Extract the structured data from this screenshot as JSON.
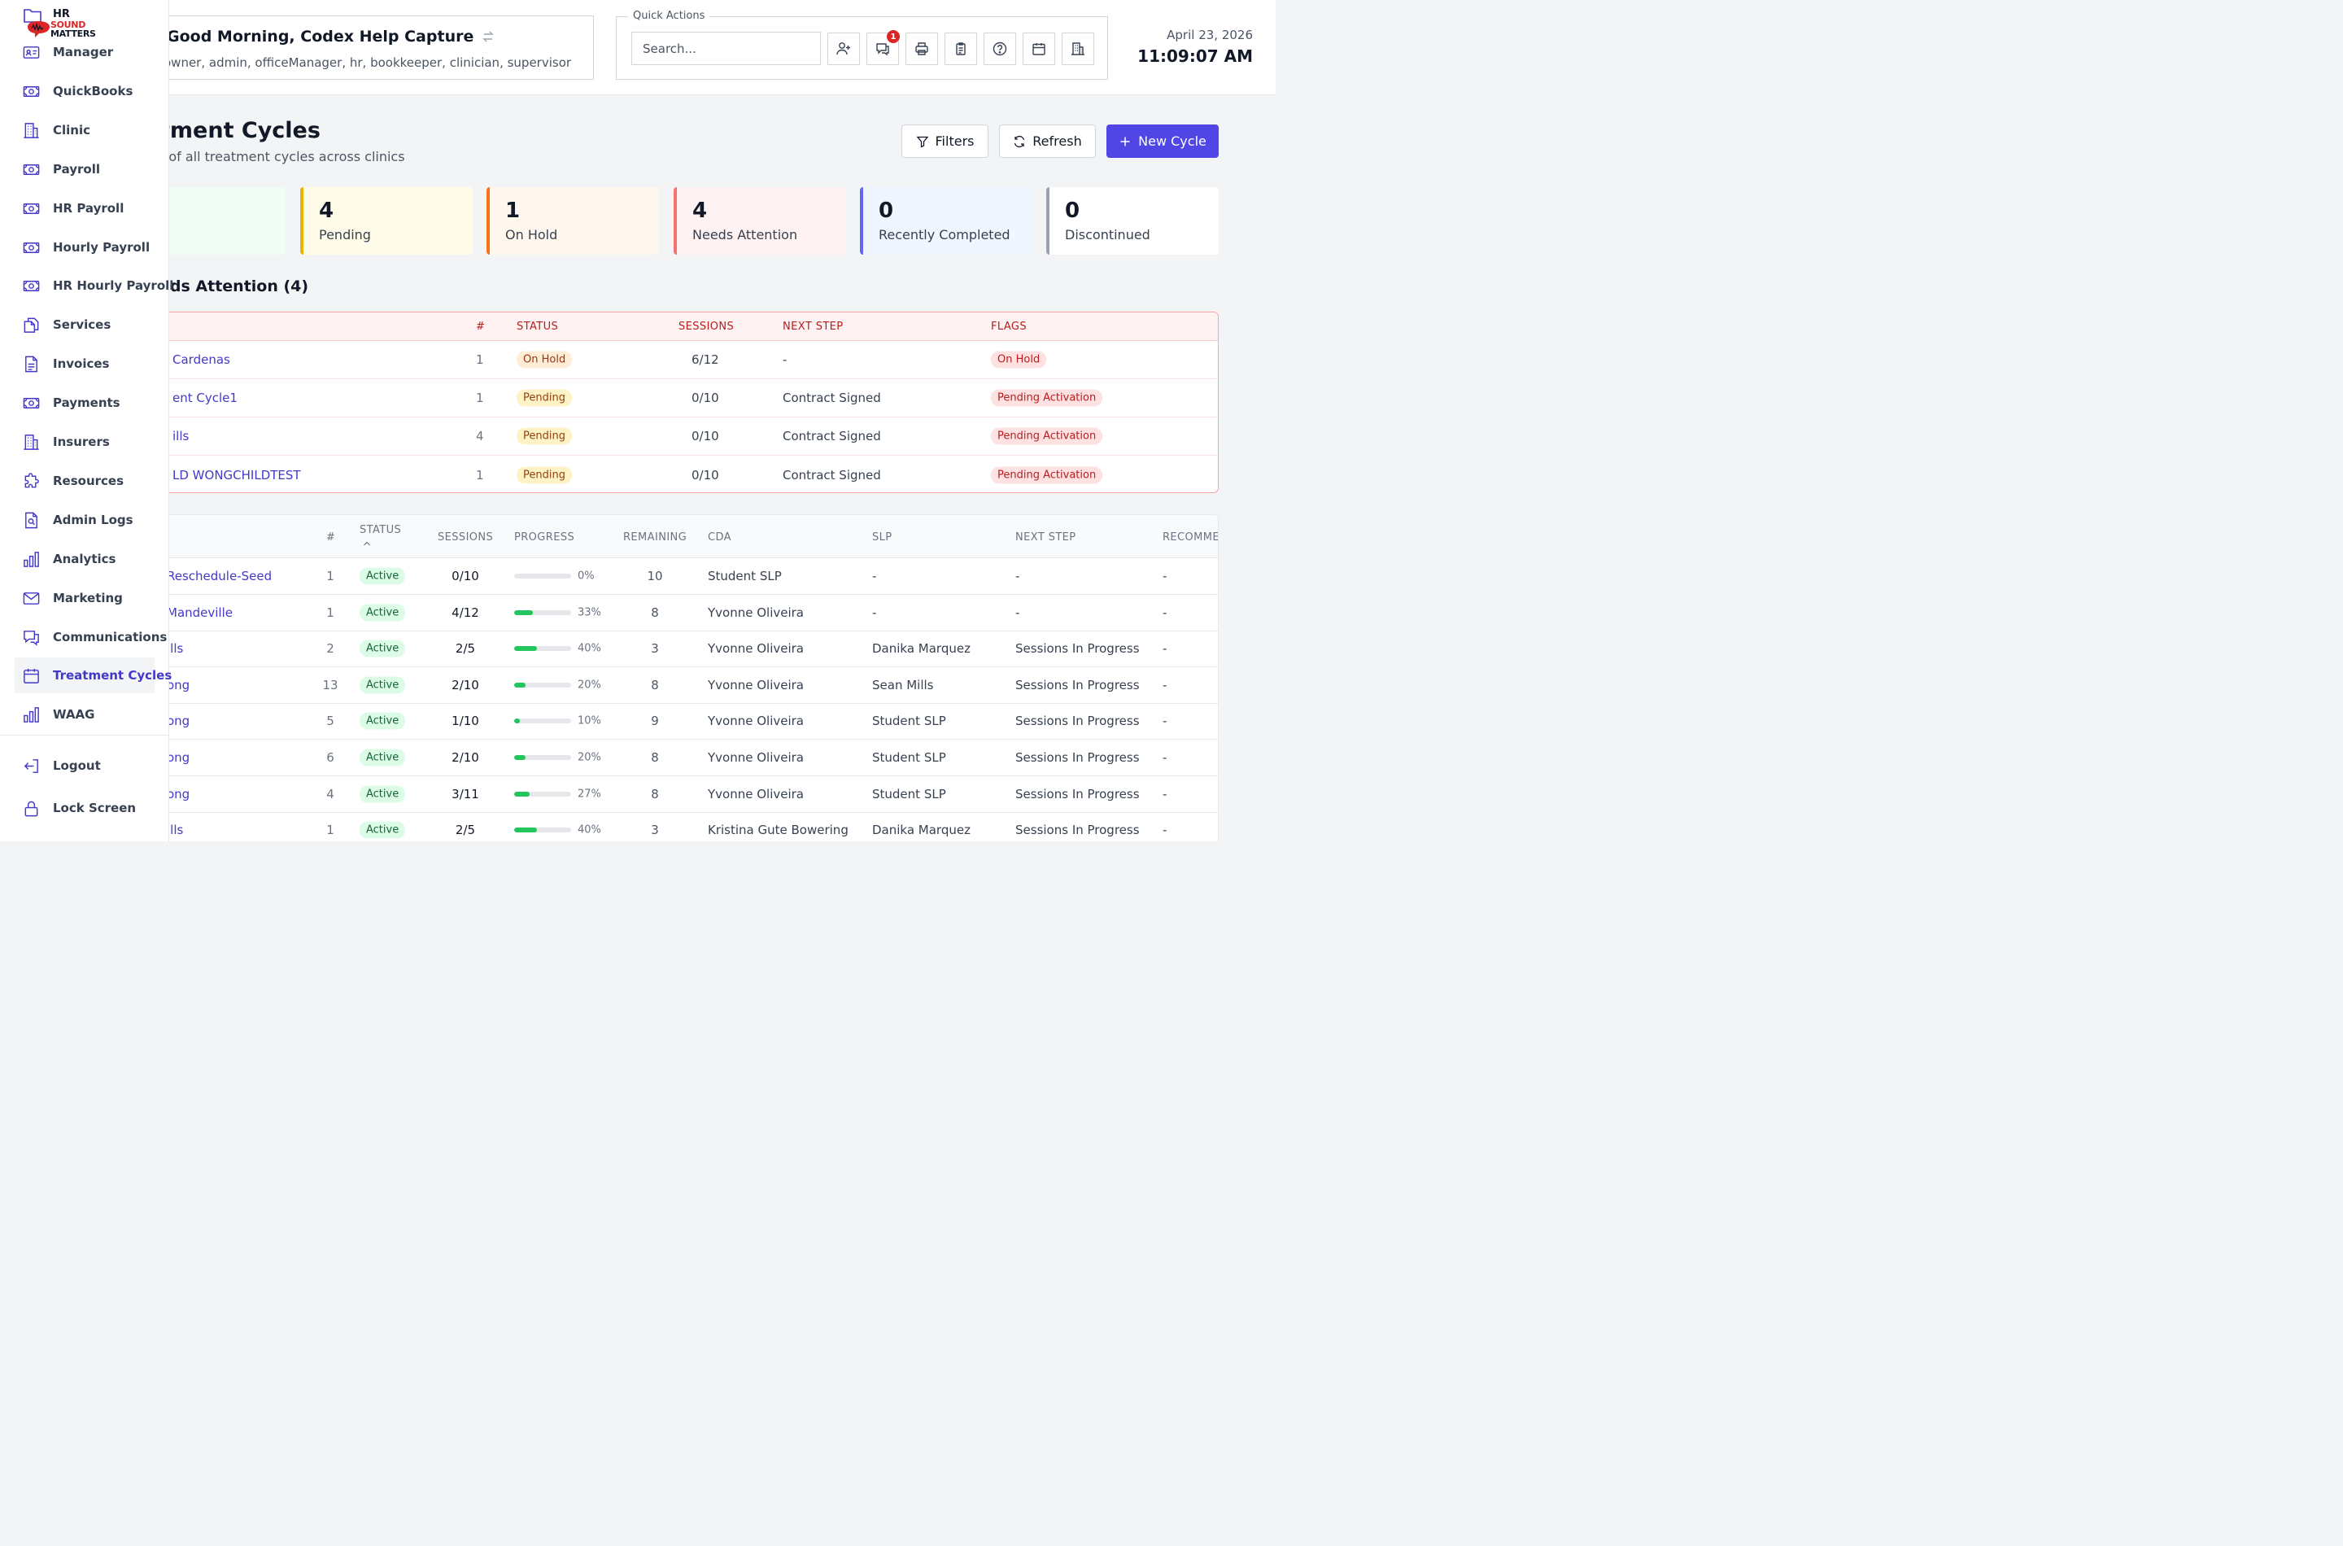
{
  "header": {
    "greeting": "Good Morning, Codex Help Capture",
    "roles": "owner, admin, officeManager, hr, bookkeeper, clinician, supervisor",
    "quick_actions_label": "Quick Actions",
    "search_placeholder": "Search...",
    "messages_badge": "1",
    "date": "April 23, 2026",
    "time": "11:09:07 AM"
  },
  "page": {
    "title": "tment Cycles",
    "subtitle": "t of all treatment cycles across clinics",
    "filters_label": "Filters",
    "refresh_label": "Refresh",
    "new_cycle_label": "New Cycle"
  },
  "stats": [
    {
      "value": "4",
      "label": "Pending",
      "bg": "#fefce8",
      "border": "#eab308"
    },
    {
      "value": "1",
      "label": "On Hold",
      "bg": "#fff7ed",
      "border": "#f97316"
    },
    {
      "value": "4",
      "label": "Needs Attention",
      "bg": "#fef2f2",
      "border": "#f87171"
    },
    {
      "value": "0",
      "label": "Recently Completed",
      "bg": "#eff6ff",
      "border": "#6366f1"
    },
    {
      "value": "0",
      "label": "Discontinued",
      "bg": "#ffffff",
      "border": "#9ca3af"
    }
  ],
  "attention": {
    "title": "eds Attention (4)",
    "columns": {
      "num": "#",
      "status": "STATUS",
      "sessions": "SESSIONS",
      "next_step": "NEXT STEP",
      "flags": "FLAGS"
    },
    "rows": [
      {
        "name": "Cardenas",
        "num": "1",
        "status": "On Hold",
        "status_kind": "orange",
        "sessions": "6/12",
        "next_step": "-",
        "flag": "On Hold"
      },
      {
        "name": "ent Cycle1",
        "num": "1",
        "status": "Pending",
        "status_kind": "yellow",
        "sessions": "0/10",
        "next_step": "Contract Signed",
        "flag": "Pending Activation"
      },
      {
        "name": "ills",
        "num": "4",
        "status": "Pending",
        "status_kind": "yellow",
        "sessions": "0/10",
        "next_step": "Contract Signed",
        "flag": "Pending Activation"
      },
      {
        "name": "LD WONGCHILDTEST",
        "num": "1",
        "status": "Pending",
        "status_kind": "yellow",
        "sessions": "0/10",
        "next_step": "Contract Signed",
        "flag": "Pending Activation"
      }
    ]
  },
  "cycles": {
    "columns": {
      "num": "#",
      "status": "STATUS",
      "sessions": "SESSIONS",
      "progress": "PROGRESS",
      "remaining": "REMAINING",
      "cda": "CDA",
      "slp": "SLP",
      "next_step": "NEXT STEP",
      "recommend": "RECOMME"
    },
    "rows": [
      {
        "name": "Reschedule-Seed",
        "num": "1",
        "status": "Active",
        "sessions": "0/10",
        "progress": 0,
        "progress_label": "0%",
        "remaining": "10",
        "cda": "Student SLP",
        "slp": "-",
        "next_step": "-",
        "recommend": "-"
      },
      {
        "name": "Mandeville",
        "num": "1",
        "status": "Active",
        "sessions": "4/12",
        "progress": 33,
        "progress_label": "33%",
        "remaining": "8",
        "cda": "Yvonne Oliveira",
        "slp": "-",
        "next_step": "-",
        "recommend": "-"
      },
      {
        "name": "ills",
        "num": "2",
        "status": "Active",
        "sessions": "2/5",
        "progress": 40,
        "progress_label": "40%",
        "remaining": "3",
        "cda": "Yvonne Oliveira",
        "slp": "Danika Marquez",
        "next_step": "Sessions In Progress",
        "recommend": "-"
      },
      {
        "name": "ong",
        "num": "13",
        "status": "Active",
        "sessions": "2/10",
        "progress": 20,
        "progress_label": "20%",
        "remaining": "8",
        "cda": "Yvonne Oliveira",
        "slp": "Sean Mills",
        "next_step": "Sessions In Progress",
        "recommend": "-"
      },
      {
        "name": "ong",
        "num": "5",
        "status": "Active",
        "sessions": "1/10",
        "progress": 10,
        "progress_label": "10%",
        "remaining": "9",
        "cda": "Yvonne Oliveira",
        "slp": "Student SLP",
        "next_step": "Sessions In Progress",
        "recommend": "-"
      },
      {
        "name": "ong",
        "num": "6",
        "status": "Active",
        "sessions": "2/10",
        "progress": 20,
        "progress_label": "20%",
        "remaining": "8",
        "cda": "Yvonne Oliveira",
        "slp": "Student SLP",
        "next_step": "Sessions In Progress",
        "recommend": "-"
      },
      {
        "name": "ong",
        "num": "4",
        "status": "Active",
        "sessions": "3/11",
        "progress": 27,
        "progress_label": "27%",
        "remaining": "8",
        "cda": "Yvonne Oliveira",
        "slp": "Student SLP",
        "next_step": "Sessions In Progress",
        "recommend": "-"
      },
      {
        "name": "ills",
        "num": "1",
        "status": "Active",
        "sessions": "2/5",
        "progress": 40,
        "progress_label": "40%",
        "remaining": "3",
        "cda": "Kristina Gute Bowering",
        "slp": "Danika Marquez",
        "next_step": "Sessions In Progress",
        "recommend": "-"
      }
    ]
  },
  "sidebar": {
    "logo": {
      "hr": "HR",
      "sound": "SOUND",
      "matters": "MATTERS"
    },
    "items": [
      {
        "label": "Manager",
        "icon": "id-card-icon",
        "active": false
      },
      {
        "label": "QuickBooks",
        "icon": "money-icon",
        "active": false
      },
      {
        "label": "Clinic",
        "icon": "building-icon",
        "active": false
      },
      {
        "label": "Payroll",
        "icon": "money-icon",
        "active": false
      },
      {
        "label": "HR Payroll",
        "icon": "money-icon",
        "active": false
      },
      {
        "label": "Hourly Payroll",
        "icon": "money-icon",
        "active": false
      },
      {
        "label": "HR Hourly Payroll",
        "icon": "money-icon",
        "active": false
      },
      {
        "label": "Services",
        "icon": "copy-icon",
        "active": false
      },
      {
        "label": "Invoices",
        "icon": "document-icon",
        "active": false
      },
      {
        "label": "Payments",
        "icon": "money-icon",
        "active": false
      },
      {
        "label": "Insurers",
        "icon": "building-icon",
        "active": false
      },
      {
        "label": "Resources",
        "icon": "puzzle-icon",
        "active": false
      },
      {
        "label": "Admin Logs",
        "icon": "search-document-icon",
        "active": false
      },
      {
        "label": "Analytics",
        "icon": "bar-chart-icon",
        "active": false
      },
      {
        "label": "Marketing",
        "icon": "envelope-icon",
        "active": false
      },
      {
        "label": "Communications",
        "icon": "chat-icon",
        "active": false
      },
      {
        "label": "Treatment Cycles",
        "icon": "calendar-icon",
        "active": true
      },
      {
        "label": "WAAG",
        "icon": "bar-chart-icon",
        "active": false
      }
    ],
    "bottom_items": [
      {
        "label": "Logout",
        "icon": "logout-icon"
      },
      {
        "label": "Lock Screen",
        "icon": "lock-icon"
      }
    ]
  }
}
